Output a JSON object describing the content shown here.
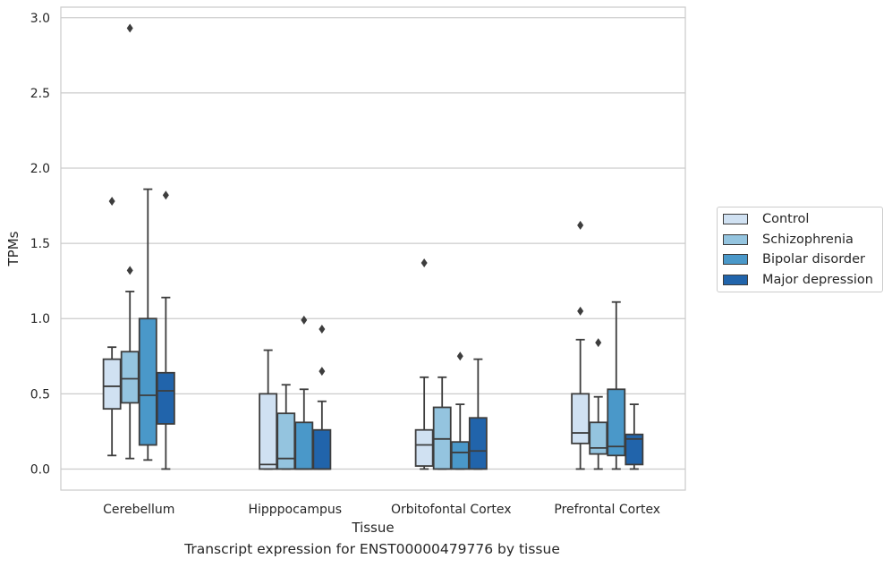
{
  "chart_data": {
    "type": "box",
    "title": "Transcript expression for ENST00000479776 by tissue",
    "xlabel": "Tissue",
    "ylabel": "TPMs",
    "ylim": [
      -0.14,
      3.07
    ],
    "yticks": [
      "0.0",
      "0.5",
      "1.0",
      "1.5",
      "2.0",
      "2.5",
      "3.0"
    ],
    "categories": [
      "Cerebellum",
      "Hipppocampus",
      "Orbitofontal Cortex",
      "Prefrontal Cortex"
    ],
    "grid": "horizontal",
    "legend_position": "right",
    "series": [
      {
        "name": "Control",
        "color": "#d0e1f2",
        "boxes": [
          {
            "whislo": 0.09,
            "q1": 0.4,
            "med": 0.55,
            "q3": 0.73,
            "whishi": 0.81,
            "fliers": [
              1.78
            ]
          },
          {
            "whislo": 0.0,
            "q1": 0.0,
            "med": 0.03,
            "q3": 0.5,
            "whishi": 0.79,
            "fliers": []
          },
          {
            "whislo": 0.0,
            "q1": 0.02,
            "med": 0.16,
            "q3": 0.26,
            "whishi": 0.61,
            "fliers": [
              1.37
            ]
          },
          {
            "whislo": 0.0,
            "q1": 0.17,
            "med": 0.24,
            "q3": 0.5,
            "whishi": 0.86,
            "fliers": [
              1.05,
              1.62
            ]
          }
        ]
      },
      {
        "name": "Schizophrenia",
        "color": "#94c4df",
        "boxes": [
          {
            "whislo": 0.07,
            "q1": 0.44,
            "med": 0.6,
            "q3": 0.78,
            "whishi": 1.18,
            "fliers": [
              1.32,
              2.93
            ]
          },
          {
            "whislo": 0.0,
            "q1": 0.0,
            "med": 0.07,
            "q3": 0.37,
            "whishi": 0.56,
            "fliers": []
          },
          {
            "whislo": 0.0,
            "q1": 0.0,
            "med": 0.2,
            "q3": 0.41,
            "whishi": 0.61,
            "fliers": []
          },
          {
            "whislo": 0.0,
            "q1": 0.1,
            "med": 0.14,
            "q3": 0.31,
            "whishi": 0.48,
            "fliers": [
              0.84
            ]
          }
        ]
      },
      {
        "name": "Bipolar disorder",
        "color": "#4a98c9",
        "boxes": [
          {
            "whislo": 0.06,
            "q1": 0.16,
            "med": 0.49,
            "q3": 1.0,
            "whishi": 1.86,
            "fliers": []
          },
          {
            "whislo": 0.0,
            "q1": 0.0,
            "med": 0.0,
            "q3": 0.31,
            "whishi": 0.53,
            "fliers": [
              0.99
            ]
          },
          {
            "whislo": 0.0,
            "q1": 0.0,
            "med": 0.11,
            "q3": 0.18,
            "whishi": 0.43,
            "fliers": [
              0.75
            ]
          },
          {
            "whislo": 0.0,
            "q1": 0.09,
            "med": 0.15,
            "q3": 0.53,
            "whishi": 1.11,
            "fliers": []
          }
        ]
      },
      {
        "name": "Major depression",
        "color": "#2164ab",
        "boxes": [
          {
            "whislo": 0.0,
            "q1": 0.3,
            "med": 0.52,
            "q3": 0.64,
            "whishi": 1.14,
            "fliers": [
              1.82
            ]
          },
          {
            "whislo": 0.0,
            "q1": 0.0,
            "med": 0.0,
            "q3": 0.26,
            "whishi": 0.45,
            "fliers": [
              0.65,
              0.93
            ]
          },
          {
            "whislo": 0.0,
            "q1": 0.0,
            "med": 0.12,
            "q3": 0.34,
            "whishi": 0.73,
            "fliers": []
          },
          {
            "whislo": 0.0,
            "q1": 0.03,
            "med": 0.2,
            "q3": 0.23,
            "whishi": 0.43,
            "fliers": []
          }
        ]
      }
    ]
  }
}
